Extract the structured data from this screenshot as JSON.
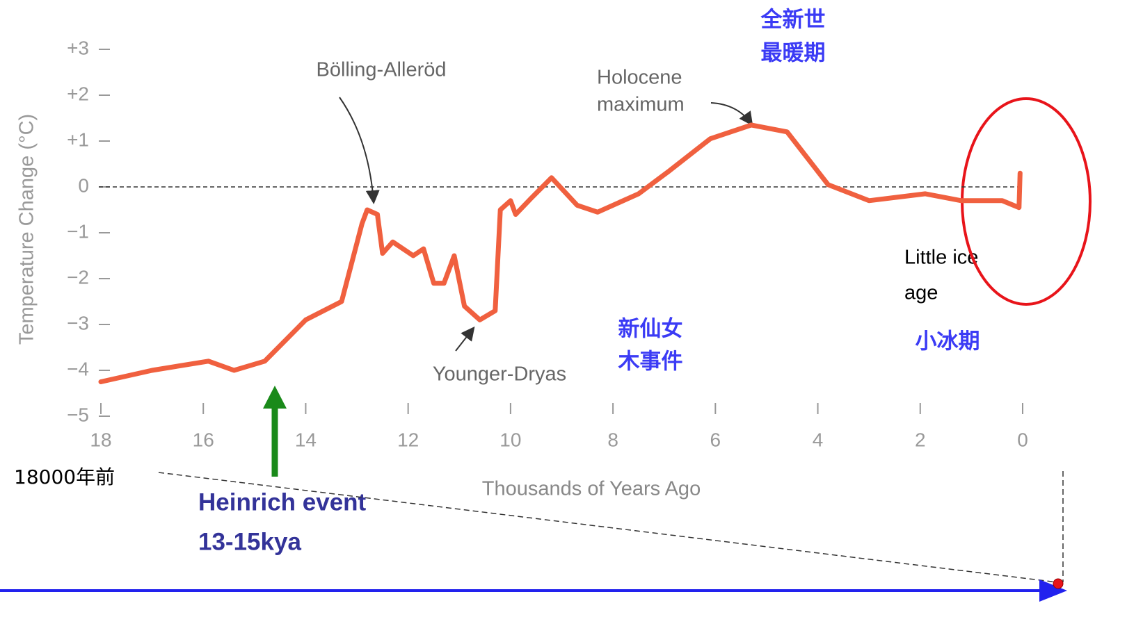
{
  "chart_data": {
    "type": "line",
    "y_label": "Temperature Change (°C)",
    "x_label": "Thousands of Years Ago",
    "xlim": [
      18,
      0
    ],
    "xticks": [
      18,
      16,
      14,
      12,
      10,
      8,
      6,
      4,
      2,
      0
    ],
    "ylim": [
      -5,
      3
    ],
    "yticks": [
      {
        "value": 3,
        "label": "+3"
      },
      {
        "value": 2,
        "label": "+2"
      },
      {
        "value": 1,
        "label": "+1"
      },
      0,
      {
        "value": -1,
        "label": "−1"
      },
      {
        "value": -2,
        "label": "−2"
      },
      {
        "value": -3,
        "label": "−3"
      },
      {
        "value": -4,
        "label": "−4"
      },
      {
        "value": -5,
        "label": "−5"
      }
    ],
    "series": [
      {
        "color": "#f0603f",
        "x": [
          18,
          17,
          15.9,
          15.4,
          14.8,
          14.0,
          13.3,
          12.9,
          12.8,
          12.6,
          12.5,
          12.3,
          11.9,
          11.7,
          11.5,
          11.3,
          11.1,
          10.9,
          10.6,
          10.3,
          10.2,
          10.0,
          9.9,
          9.6,
          9.2,
          8.7,
          8.3,
          7.5,
          6.9,
          6.1,
          5.3,
          4.6,
          3.8,
          3.0,
          1.9,
          1.2,
          0.4,
          0.07,
          0.05
        ],
        "values": [
          -4.25,
          -4.0,
          -3.8,
          -4.0,
          -3.8,
          -2.9,
          -2.5,
          -0.8,
          -0.5,
          -0.6,
          -1.45,
          -1.2,
          -1.5,
          -1.35,
          -2.1,
          -2.1,
          -1.5,
          -2.6,
          -2.9,
          -2.7,
          -0.5,
          -0.3,
          -0.6,
          -0.25,
          0.2,
          -0.4,
          -0.55,
          -0.15,
          0.35,
          1.05,
          1.35,
          1.2,
          0.05,
          -0.3,
          -0.15,
          -0.3,
          -0.3,
          -0.45,
          0.3
        ]
      }
    ],
    "annotations": [
      [
        "Bölling-Alleröd"
      ],
      [
        "Holocene",
        "maximum"
      ],
      [
        "Younger-Dryas"
      ],
      [
        "全新世",
        "最暖期"
      ],
      [
        "新仙女",
        "木事件"
      ],
      [
        "Little ice",
        "age"
      ],
      [
        "小冰期"
      ],
      [
        "18000年前"
      ],
      [
        "Heinrich event",
        "13-15kya"
      ]
    ]
  }
}
